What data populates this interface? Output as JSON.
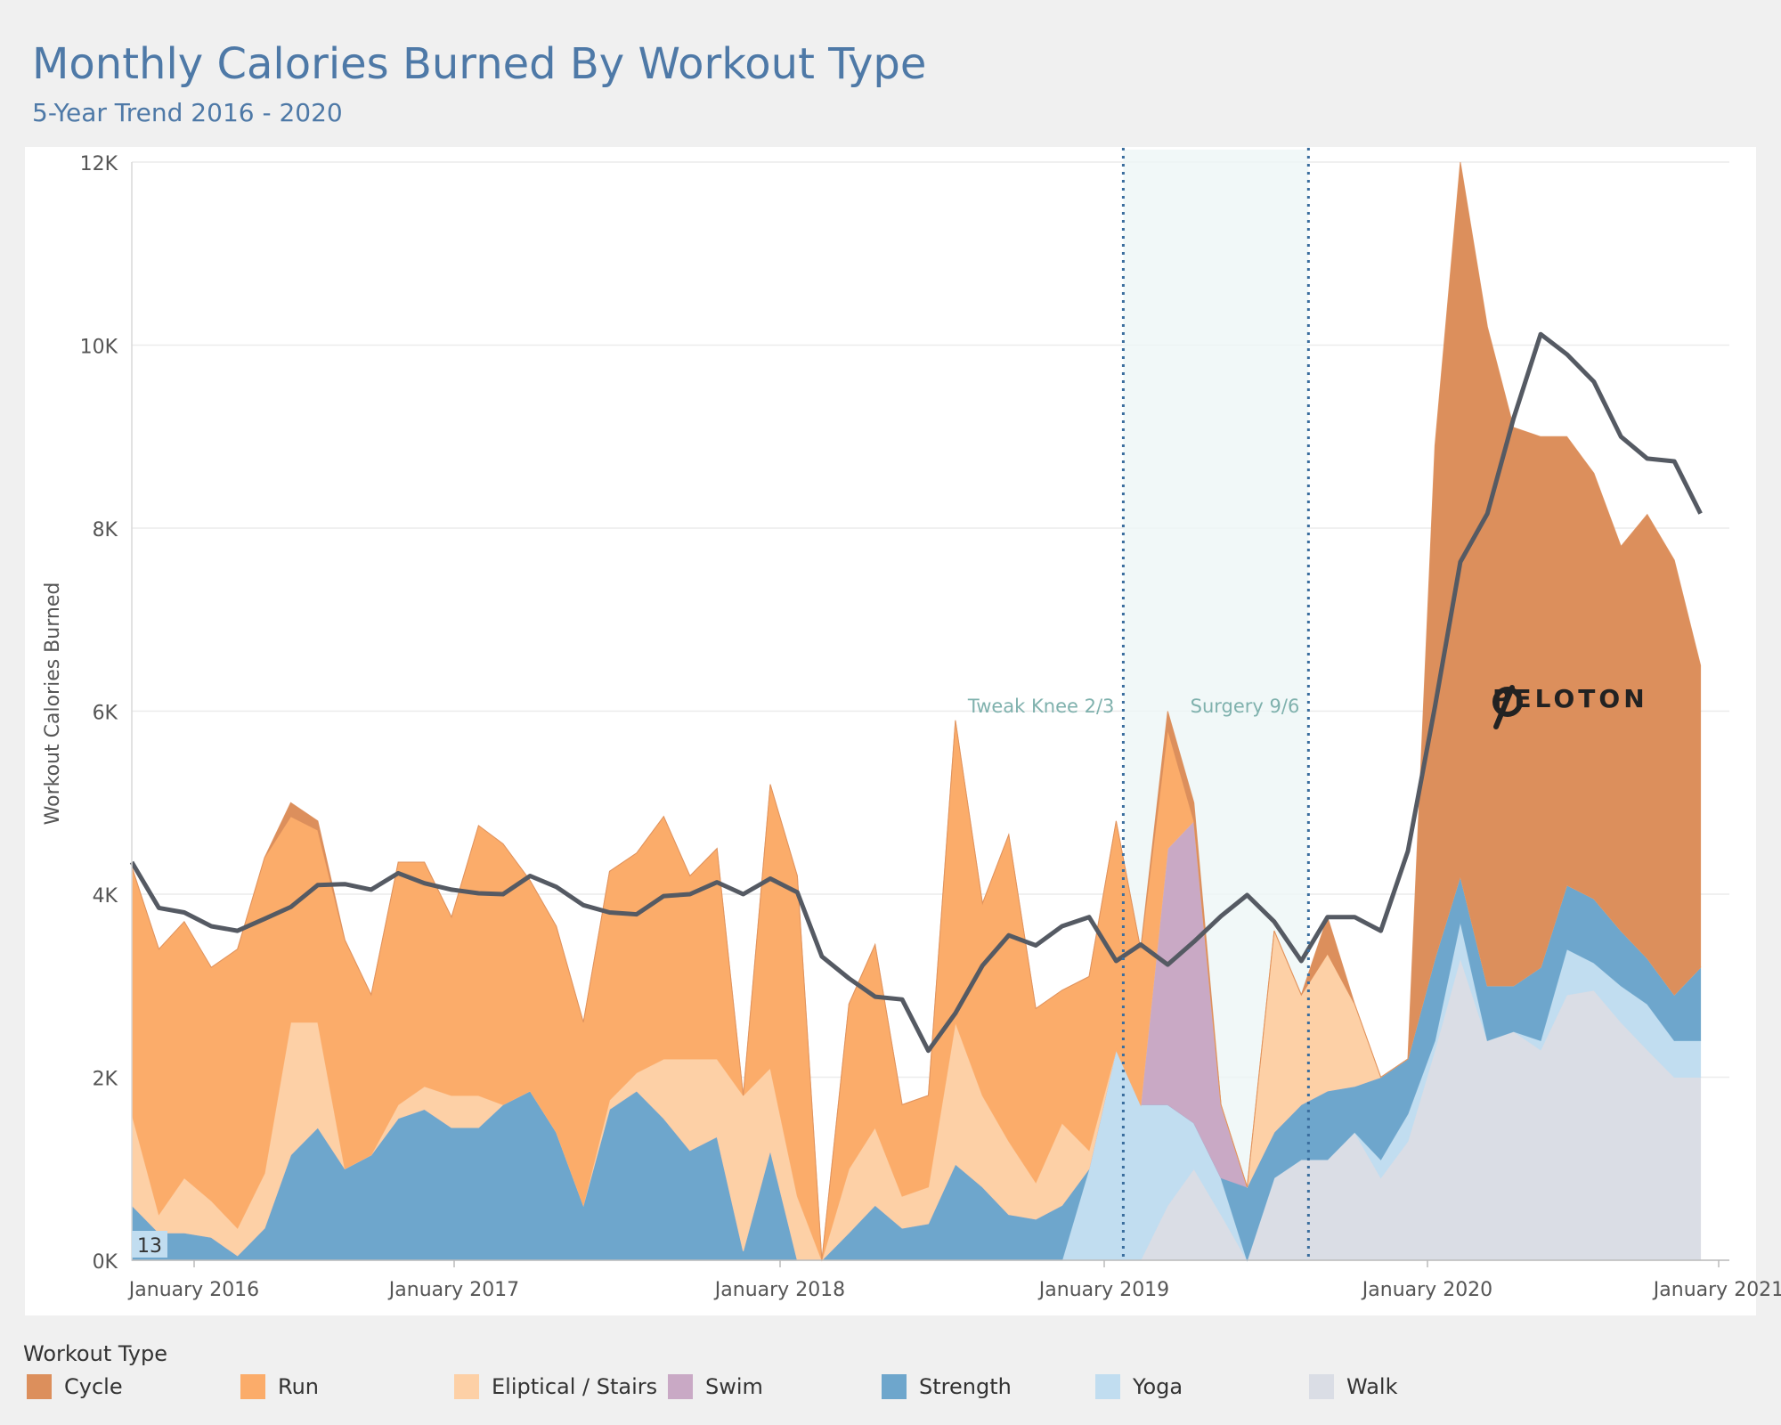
{
  "title": "Monthly Calories Burned By Workout Type",
  "subtitle": "5-Year Trend 2016 - 2020",
  "legend": {
    "title": "Workout Type",
    "items": [
      {
        "label": "Cycle",
        "color": "#dc8f5c"
      },
      {
        "label": "Run",
        "color": "#fbac6a"
      },
      {
        "label": "Eliptical / Stairs",
        "color": "#fdd0a6"
      },
      {
        "label": "Swim",
        "color": "#c9a9c5"
      },
      {
        "label": "Strength",
        "color": "#6ea6cc"
      },
      {
        "label": "Yoga",
        "color": "#c1ddf0"
      },
      {
        "label": "Walk",
        "color": "#dadde5"
      }
    ]
  },
  "annotations": {
    "knee": "Tweak Knee 2/3",
    "surgery": "Surgery 9/6",
    "count_badge": "13",
    "logo_text": "PELOTON"
  },
  "chart_data": {
    "type": "area",
    "stacked": true,
    "ylabel": "Workout Calories Burned",
    "xlabel": "",
    "ylim": [
      0,
      12000
    ],
    "y_ticks": [
      "0K",
      "2K",
      "4K",
      "6K",
      "8K",
      "10K",
      "12K"
    ],
    "x_ticks": [
      "January 2016",
      "January 2017",
      "January 2018",
      "January 2019",
      "January 2020",
      "January 2021"
    ],
    "x": [
      "2016-01",
      "2016-02",
      "2016-03",
      "2016-04",
      "2016-05",
      "2016-06",
      "2016-07",
      "2016-08",
      "2016-09",
      "2016-10",
      "2016-11",
      "2016-12",
      "2017-01",
      "2017-02",
      "2017-03",
      "2017-04",
      "2017-05",
      "2017-06",
      "2017-07",
      "2017-08",
      "2017-09",
      "2017-10",
      "2017-11",
      "2017-12",
      "2018-01",
      "2018-02",
      "2018-03",
      "2018-04",
      "2018-05",
      "2018-06",
      "2018-07",
      "2018-08",
      "2018-09",
      "2018-10",
      "2018-11",
      "2018-12",
      "2019-01",
      "2019-02",
      "2019-03",
      "2019-04",
      "2019-05",
      "2019-06",
      "2019-07",
      "2019-08",
      "2019-09",
      "2019-10",
      "2019-11",
      "2019-12",
      "2020-01",
      "2020-02",
      "2020-03",
      "2020-04",
      "2020-05",
      "2020-06",
      "2020-07",
      "2020-08",
      "2020-09",
      "2020-10",
      "2020-11",
      "2020-12"
    ],
    "series": [
      {
        "name": "Walk",
        "color": "#dadde5",
        "values": [
          0,
          0,
          0,
          0,
          0,
          0,
          0,
          0,
          0,
          0,
          0,
          0,
          0,
          0,
          0,
          0,
          0,
          0,
          0,
          0,
          0,
          0,
          0,
          0,
          0,
          0,
          0,
          0,
          0,
          0,
          0,
          0,
          0,
          0,
          0,
          0,
          0,
          0,
          0,
          600,
          1000,
          500,
          0,
          900,
          1100,
          1100,
          1400,
          900,
          1300,
          2300,
          3300,
          2400,
          2500,
          2300,
          2900,
          2950,
          2600,
          2300,
          2000,
          2000
        ]
      },
      {
        "name": "Yoga",
        "color": "#c1ddf0",
        "values": [
          0,
          0,
          0,
          0,
          0,
          0,
          0,
          0,
          0,
          0,
          0,
          0,
          0,
          0,
          0,
          0,
          0,
          0,
          0,
          0,
          0,
          0,
          0,
          0,
          0,
          0,
          0,
          0,
          0,
          0,
          0,
          0,
          0,
          0,
          0,
          0,
          1000,
          2300,
          1700,
          1100,
          500,
          400,
          0,
          0,
          0,
          0,
          0,
          200,
          300,
          100,
          400,
          0,
          0,
          100,
          500,
          300,
          400,
          500,
          400,
          400
        ]
      },
      {
        "name": "Strength",
        "color": "#6ea6cc",
        "values": [
          600,
          300,
          300,
          250,
          50,
          350,
          1150,
          1450,
          1000,
          1150,
          1550,
          1650,
          1450,
          1450,
          1700,
          1850,
          1400,
          600,
          1650,
          1850,
          1550,
          1200,
          1350,
          100,
          1200,
          0,
          0,
          300,
          600,
          350,
          400,
          1050,
          800,
          500,
          450,
          600,
          0,
          0,
          0,
          0,
          0,
          0,
          800,
          500,
          600,
          750,
          500,
          900,
          600,
          900,
          500,
          600,
          500,
          800,
          700,
          700,
          600,
          500,
          500,
          800
        ]
      },
      {
        "name": "Swim",
        "color": "#c9a9c5",
        "values": [
          0,
          0,
          0,
          0,
          0,
          0,
          0,
          0,
          0,
          0,
          0,
          0,
          0,
          0,
          0,
          0,
          0,
          0,
          0,
          0,
          0,
          0,
          0,
          0,
          0,
          0,
          0,
          0,
          0,
          0,
          0,
          0,
          0,
          0,
          0,
          0,
          0,
          0,
          0,
          2800,
          3300,
          800,
          0,
          0,
          0,
          0,
          0,
          0,
          0,
          0,
          0,
          0,
          0,
          0,
          0,
          0,
          0,
          0,
          0,
          0
        ]
      },
      {
        "name": "Eliptical / Stairs",
        "color": "#fdd0a6",
        "values": [
          1000,
          200,
          600,
          400,
          300,
          600,
          1450,
          1150,
          0,
          0,
          150,
          250,
          350,
          350,
          0,
          0,
          0,
          0,
          100,
          200,
          650,
          1000,
          850,
          1700,
          900,
          700,
          0,
          700,
          850,
          350,
          400,
          1550,
          1000,
          800,
          400,
          900,
          200,
          0,
          0,
          0,
          0,
          0,
          0,
          2200,
          1200,
          1500,
          900,
          0,
          0,
          0,
          0,
          0,
          0,
          0,
          0,
          0,
          0,
          0,
          0,
          0
        ]
      },
      {
        "name": "Run",
        "color": "#fbac6a",
        "values": [
          2700,
          2900,
          2800,
          2550,
          3050,
          3450,
          2250,
          2100,
          2500,
          1750,
          2650,
          2450,
          1950,
          2950,
          2850,
          2300,
          2250,
          2000,
          2500,
          2400,
          2650,
          2000,
          2300,
          0,
          3100,
          3500,
          0,
          1800,
          2000,
          1000,
          1000,
          3300,
          2100,
          3350,
          1900,
          1450,
          1900,
          2500,
          1700,
          1300,
          0,
          0,
          0,
          0,
          0,
          0,
          0,
          0,
          0,
          0,
          0,
          0,
          0,
          0,
          0,
          0,
          0,
          0,
          0,
          0
        ]
      },
      {
        "name": "Cycle",
        "color": "#dc8f5c",
        "values": [
          0,
          0,
          0,
          0,
          0,
          0,
          150,
          100,
          0,
          0,
          0,
          0,
          0,
          0,
          0,
          0,
          0,
          0,
          0,
          0,
          0,
          0,
          0,
          0,
          0,
          0,
          0,
          0,
          0,
          0,
          0,
          0,
          0,
          0,
          0,
          0,
          0,
          0,
          0,
          200,
          200,
          0,
          0,
          0,
          0,
          400,
          0,
          0,
          0,
          5600,
          7800,
          7200,
          6100,
          5800,
          4900,
          4650,
          4200,
          4850,
          4750,
          3300
        ]
      }
    ],
    "trend": {
      "name": "Moving average",
      "color": "#555a63",
      "values": [
        4350,
        3850,
        3800,
        3650,
        3600,
        3730,
        3860,
        4100,
        4110,
        4050,
        4230,
        4120,
        4050,
        4010,
        4000,
        4200,
        4080,
        3880,
        3800,
        3780,
        3980,
        4000,
        4130,
        4000,
        4170,
        4020,
        3320,
        3080,
        2880,
        2850,
        2290,
        2700,
        3220,
        3550,
        3440,
        3650,
        3750,
        3270,
        3450,
        3230,
        3480,
        3760,
        3990,
        3700,
        3270,
        3750,
        3750,
        3600,
        4470,
        6050,
        7630,
        8160,
        9200,
        10120,
        9900,
        9600,
        9000,
        8760,
        8730,
        8160
      ]
    },
    "annotations": [
      {
        "label": "Tweak Knee 2/3",
        "x": "2019-02"
      },
      {
        "label": "Surgery 9/6",
        "x": "2019-09"
      }
    ],
    "shaded_range": [
      "2019-02",
      "2019-09"
    ]
  }
}
